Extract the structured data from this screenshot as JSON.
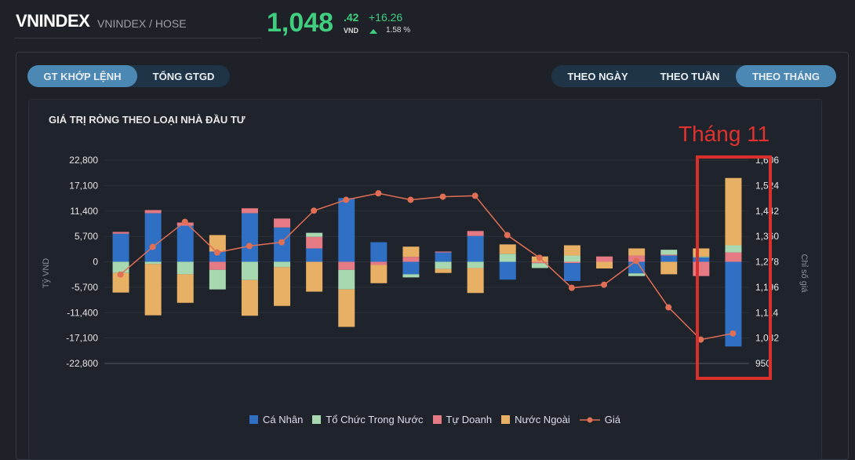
{
  "header": {
    "symbol": "VNINDEX",
    "subtitle": "VNINDEX / HOSE",
    "price_int": "1,048",
    "price_dec": ".42",
    "currency": "VND",
    "change": "+16.26",
    "change_pct": "1.58 %",
    "up_color": "#3fcf7f"
  },
  "tabs_left": [
    {
      "label": "GT KHỚP LỆNH",
      "active": true
    },
    {
      "label": "TỔNG GTGD",
      "active": false
    }
  ],
  "tabs_right": [
    {
      "label": "THEO NGÀY",
      "active": false
    },
    {
      "label": "THEO TUẦN",
      "active": false
    },
    {
      "label": "THEO THÁNG",
      "active": true
    }
  ],
  "annotation": {
    "label": "Tháng 11",
    "color": "#e0332f"
  },
  "chart_data": {
    "type": "bar",
    "title": "GIÁ TRỊ RÒNG THEO LOẠI NHÀ ĐẦU TƯ",
    "ylabel": "Tỷ VND",
    "y2label": "Chỉ số giá",
    "ylim": [
      -22800,
      22800
    ],
    "y2lim": [
      950,
      1606
    ],
    "yticks": [
      "22,800",
      "17,100",
      "11,400",
      "5,700",
      "0",
      "-5,700",
      "-11,400",
      "-17,100",
      "-22,800"
    ],
    "y2ticks": [
      "1,606",
      "1,524",
      "1,442",
      "1,360",
      "1,278",
      "1,196",
      "1,114",
      "1,032",
      "950"
    ],
    "stacked": true,
    "grid": true,
    "legend": "bottom",
    "series": [
      {
        "name": "Cá Nhân",
        "color": "#2f6fc4",
        "values": [
          6300,
          10900,
          8100,
          2300,
          10900,
          7700,
          3000,
          14300,
          4400,
          -2800,
          2100,
          5800,
          -4000,
          0,
          -4000,
          0,
          -2600,
          1400,
          1000,
          -19000
        ]
      },
      {
        "name": "Tổ Chức Trong Nước",
        "color": "#a8d8b0",
        "values": [
          -2500,
          -500,
          -2800,
          -4400,
          -4100,
          -1200,
          900,
          -4400,
          0,
          -700,
          -1600,
          -1400,
          1800,
          -1100,
          1400,
          0,
          -600,
          1100,
          200,
          1600
        ]
      },
      {
        "name": "Tự Doanh",
        "color": "#e57a85",
        "values": [
          400,
          700,
          700,
          -1800,
          1100,
          2000,
          2600,
          -1800,
          -700,
          1100,
          200,
          1100,
          0,
          -300,
          -300,
          1200,
          1400,
          200,
          -3200,
          2100
        ]
      },
      {
        "name": "Nước Ngoài",
        "color": "#e8b064",
        "values": [
          -4400,
          -11500,
          -6400,
          3700,
          -8000,
          -8700,
          -6700,
          -8400,
          -4100,
          2300,
          -900,
          -5600,
          2100,
          1200,
          2300,
          -1500,
          1600,
          -2800,
          1800,
          15100
        ]
      }
    ],
    "line": {
      "name": "Giá",
      "color": "#e06f55",
      "values": [
        1237,
        1326,
        1407,
        1308,
        1329,
        1341,
        1443,
        1478,
        1499,
        1478,
        1488,
        1491,
        1364,
        1291,
        1194,
        1204,
        1281,
        1131,
        1027,
        1047
      ]
    }
  }
}
